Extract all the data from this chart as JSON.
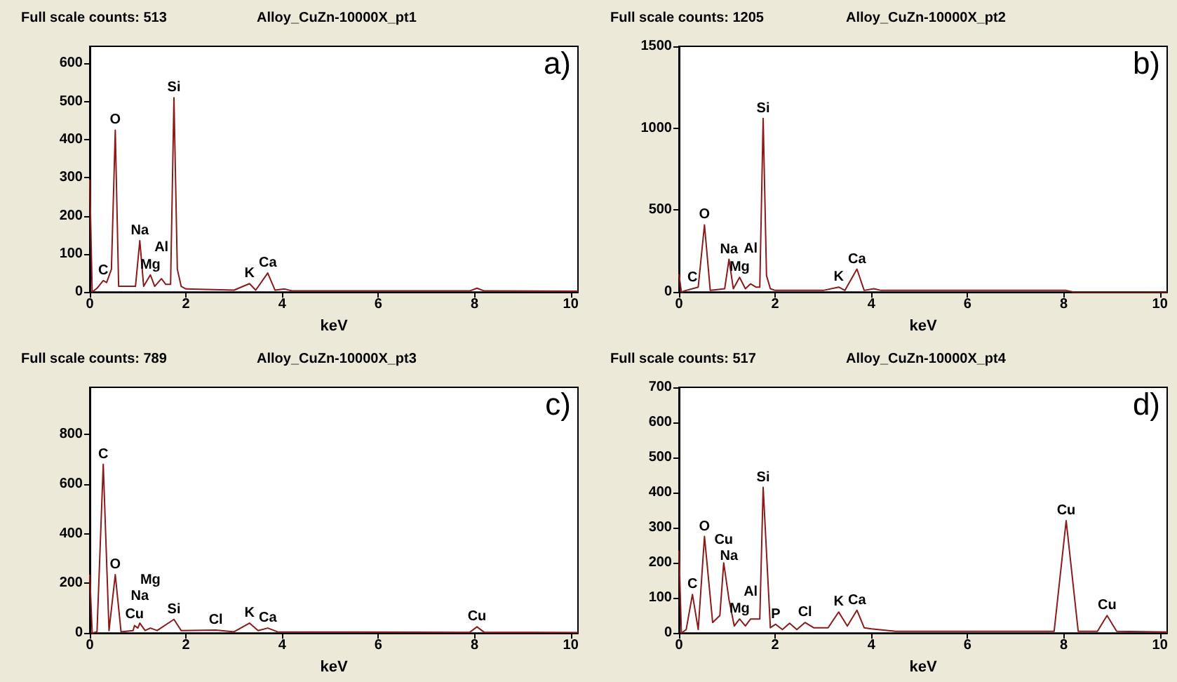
{
  "chart_data": [
    {
      "type": "line",
      "title": "Full scale counts: 513",
      "subtitle": "Alloy_CuZn-10000X_pt1",
      "xlabel": "keV",
      "x": [
        0,
        0.05,
        0.15,
        0.28,
        0.35,
        0.45,
        0.53,
        0.6,
        0.95,
        1.04,
        1.12,
        1.26,
        1.35,
        1.49,
        1.58,
        1.68,
        1.75,
        1.82,
        1.9,
        2.0,
        3.0,
        3.32,
        3.45,
        3.7,
        3.85,
        4.05,
        4.2,
        7.9,
        8.05,
        8.2,
        10.15
      ],
      "series": [
        {
          "color": "#8b1a1a",
          "values": [
            295,
            0,
            10,
            30,
            25,
            60,
            425,
            15,
            15,
            135,
            15,
            45,
            15,
            35,
            20,
            20,
            510,
            60,
            15,
            8,
            5,
            22,
            5,
            50,
            5,
            8,
            3,
            3,
            10,
            3,
            2
          ]
        }
      ],
      "xlim": [
        0,
        10.15
      ],
      "xticks": [
        0,
        2,
        4,
        6,
        8,
        10
      ],
      "ylim": [
        0,
        645
      ],
      "yticks": [
        0,
        100,
        200,
        300,
        400,
        500,
        600
      ],
      "annotations": [
        "a)",
        {
          "text": "C",
          "x": 0.28,
          "y": 30
        },
        {
          "text": "O",
          "x": 0.53,
          "y": 425
        },
        {
          "text": "Na",
          "x": 1.04,
          "y": 135
        },
        {
          "text": "Mg",
          "x": 1.26,
          "y": 45
        },
        {
          "text": "Al",
          "x": 1.49,
          "y": 35
        },
        {
          "text": "Si",
          "x": 1.75,
          "y": 510
        },
        {
          "text": "K",
          "x": 3.32,
          "y": 22
        },
        {
          "text": "Ca",
          "x": 3.7,
          "y": 50
        }
      ]
    },
    {
      "type": "line",
      "title": "Full scale counts: 1205",
      "subtitle": "Alloy_CuZn-10000X_pt2",
      "xlabel": "keV",
      "x": [
        0,
        0.05,
        0.15,
        0.28,
        0.4,
        0.53,
        0.65,
        0.95,
        1.04,
        1.13,
        1.26,
        1.38,
        1.49,
        1.6,
        1.68,
        1.75,
        1.82,
        1.9,
        2.0,
        3.0,
        3.32,
        3.45,
        3.7,
        3.85,
        4.05,
        4.2,
        7.9,
        8.05,
        8.2,
        10.15
      ],
      "series": [
        {
          "color": "#8b1a1a",
          "values": [
            110,
            0,
            10,
            20,
            30,
            410,
            10,
            20,
            200,
            20,
            90,
            20,
            50,
            30,
            30,
            1060,
            100,
            20,
            10,
            10,
            30,
            10,
            140,
            10,
            20,
            10,
            10,
            10,
            0,
            0
          ]
        }
      ],
      "xlim": [
        0,
        10.15
      ],
      "xticks": [
        0,
        2,
        4,
        6,
        8,
        10
      ],
      "ylim": [
        0,
        1500
      ],
      "yticks": [
        0,
        500,
        1000,
        1500
      ],
      "annotations": [
        "b)",
        {
          "text": "C",
          "x": 0.28,
          "y": 20
        },
        {
          "text": "O",
          "x": 0.53,
          "y": 410
        },
        {
          "text": "Na",
          "x": 1.04,
          "y": 200
        },
        {
          "text": "Mg",
          "x": 1.26,
          "y": 90
        },
        {
          "text": "Al",
          "x": 1.49,
          "y": 50
        },
        {
          "text": "Si",
          "x": 1.75,
          "y": 1060
        },
        {
          "text": "K",
          "x": 3.32,
          "y": 30
        },
        {
          "text": "Ca",
          "x": 3.7,
          "y": 140
        }
      ]
    },
    {
      "type": "line",
      "title": "Full scale counts: 789",
      "subtitle": "Alloy_CuZn-10000X_pt3",
      "xlabel": "keV",
      "x": [
        0,
        0.05,
        0.15,
        0.28,
        0.4,
        0.53,
        0.65,
        0.9,
        0.93,
        1.0,
        1.04,
        1.15,
        1.26,
        1.4,
        1.75,
        1.9,
        2.62,
        3.0,
        3.32,
        3.5,
        3.7,
        3.9,
        7.9,
        8.05,
        8.2,
        10.15
      ],
      "series": [
        {
          "color": "#8b1a1a",
          "values": [
            235,
            0,
            5,
            680,
            10,
            235,
            5,
            10,
            30,
            20,
            40,
            10,
            20,
            10,
            55,
            10,
            12,
            5,
            40,
            10,
            20,
            5,
            3,
            25,
            3,
            2
          ]
        }
      ],
      "xlim": [
        0,
        10.15
      ],
      "xticks": [
        0,
        2,
        4,
        6,
        8,
        10
      ],
      "ylim": [
        0,
        990
      ],
      "yticks": [
        0,
        200,
        400,
        600,
        800
      ],
      "annotations": [
        "c)",
        {
          "text": "C",
          "x": 0.28,
          "y": 680
        },
        {
          "text": "O",
          "x": 0.53,
          "y": 235
        },
        {
          "text": "Cu",
          "x": 0.93,
          "y": 30
        },
        {
          "text": "Na",
          "x": 1.04,
          "y": 40
        },
        {
          "text": "Mg",
          "x": 1.26,
          "y": 20
        },
        {
          "text": "Si",
          "x": 1.75,
          "y": 55
        },
        {
          "text": "Cl",
          "x": 2.62,
          "y": 12
        },
        {
          "text": "K",
          "x": 3.32,
          "y": 40
        },
        {
          "text": "Ca",
          "x": 3.7,
          "y": 20
        },
        {
          "text": "Cu",
          "x": 8.05,
          "y": 25
        }
      ]
    },
    {
      "type": "line",
      "title": "Full scale counts: 517",
      "subtitle": "Alloy_CuZn-10000X_pt4",
      "xlabel": "keV",
      "x": [
        0,
        0.05,
        0.15,
        0.28,
        0.4,
        0.53,
        0.7,
        0.85,
        0.93,
        1.04,
        1.15,
        1.26,
        1.38,
        1.49,
        1.6,
        1.68,
        1.75,
        1.9,
        2.01,
        2.15,
        2.3,
        2.45,
        2.62,
        2.8,
        3.1,
        3.32,
        3.5,
        3.7,
        3.85,
        4.0,
        4.5,
        6.0,
        7.8,
        8.05,
        8.3,
        8.7,
        8.9,
        9.1,
        10.15
      ],
      "series": [
        {
          "color": "#8b1a1a",
          "values": [
            235,
            0,
            10,
            110,
            10,
            275,
            30,
            50,
            200,
            95,
            20,
            40,
            20,
            40,
            40,
            40,
            415,
            15,
            25,
            10,
            28,
            10,
            30,
            15,
            15,
            60,
            20,
            65,
            15,
            12,
            5,
            5,
            5,
            320,
            5,
            5,
            50,
            5,
            3
          ]
        }
      ],
      "xlim": [
        0,
        10.15
      ],
      "xticks": [
        0,
        2,
        4,
        6,
        8,
        10
      ],
      "ylim": [
        0,
        700
      ],
      "yticks": [
        0,
        100,
        200,
        300,
        400,
        500,
        600,
        700
      ],
      "annotations": [
        "d)",
        {
          "text": "C",
          "x": 0.28,
          "y": 110
        },
        {
          "text": "O",
          "x": 0.53,
          "y": 275
        },
        {
          "text": "Na",
          "x": 1.04,
          "y": 95
        },
        {
          "text": "Cu",
          "x": 0.93,
          "y": 200
        },
        {
          "text": "Mg",
          "x": 1.26,
          "y": 40
        },
        {
          "text": "Al",
          "x": 1.49,
          "y": 40
        },
        {
          "text": "Si",
          "x": 1.75,
          "y": 415
        },
        {
          "text": "P",
          "x": 2.01,
          "y": 25
        },
        {
          "text": "Cl",
          "x": 2.62,
          "y": 30
        },
        {
          "text": "K",
          "x": 3.32,
          "y": 60
        },
        {
          "text": "Ca",
          "x": 3.7,
          "y": 65
        },
        {
          "text": "Cu",
          "x": 8.05,
          "y": 320
        },
        {
          "text": "Cu",
          "x": 8.9,
          "y": 50
        }
      ]
    }
  ]
}
